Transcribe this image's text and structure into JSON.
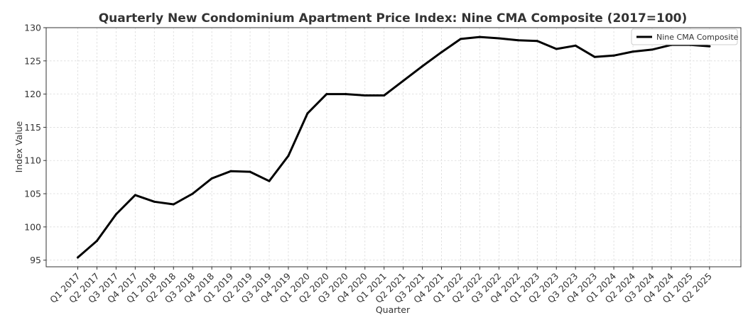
{
  "chart_data": {
    "type": "line",
    "title": "Quarterly New Condominium Apartment Price Index: Nine CMA Composite (2017=100)",
    "xlabel": "Quarter",
    "ylabel": "Index Value",
    "ylim": [
      94,
      130
    ],
    "yticks": [
      95,
      100,
      105,
      110,
      115,
      120,
      125,
      130
    ],
    "grid": true,
    "legend_position": "top-right",
    "categories": [
      "Q1 2017",
      "Q2 2017",
      "Q3 2017",
      "Q4 2017",
      "Q1 2018",
      "Q2 2018",
      "Q3 2018",
      "Q4 2018",
      "Q1 2019",
      "Q2 2019",
      "Q3 2019",
      "Q4 2019",
      "Q1 2020",
      "Q2 2020",
      "Q3 2020",
      "Q4 2020",
      "Q1 2021",
      "Q2 2021",
      "Q3 2021",
      "Q4 2021",
      "Q1 2022",
      "Q2 2022",
      "Q3 2022",
      "Q4 2022",
      "Q1 2023",
      "Q2 2023",
      "Q3 2023",
      "Q4 2023",
      "Q1 2024",
      "Q2 2024",
      "Q3 2024",
      "Q4 2024",
      "Q1 2025",
      "Q2 2025"
    ],
    "series": [
      {
        "name": "Nine CMA Composite",
        "color": "#000000",
        "values": [
          95.4,
          97.9,
          101.9,
          104.8,
          103.8,
          103.4,
          105.0,
          107.3,
          108.4,
          108.3,
          106.9,
          110.7,
          117.1,
          120.0,
          120.0,
          119.8,
          119.8,
          122.0,
          124.2,
          126.3,
          128.3,
          128.6,
          128.4,
          128.1,
          128.0,
          126.8,
          127.3,
          125.6,
          125.8,
          126.4,
          126.7,
          127.4,
          127.4,
          127.2
        ]
      }
    ]
  }
}
